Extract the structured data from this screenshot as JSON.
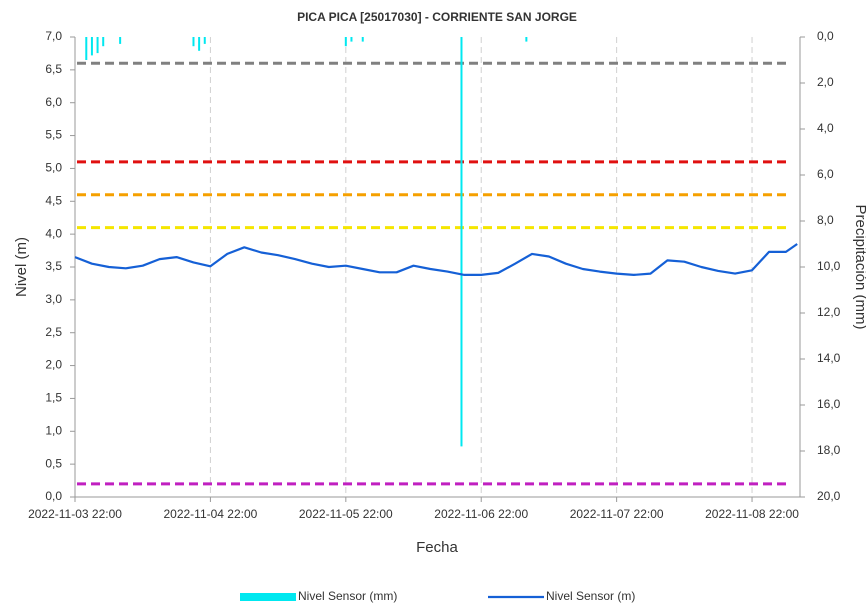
{
  "chart_data": {
    "type": "dual_axis_line_bar",
    "title": "PICA PICA [25017030] - CORRIENTE SAN JORGE",
    "xlabel": "Fecha",
    "ylabel": "Nivel (m)",
    "y2label": "Precipitación (mm)",
    "xlim": [
      "2022-11-03 22:00",
      "2022-11-09 06:30"
    ],
    "xticks": [
      "2022-11-03 22:00",
      "2022-11-04 22:00",
      "2022-11-05 22:00",
      "2022-11-06 22:00",
      "2022-11-07 22:00",
      "2022-11-08 22:00"
    ],
    "ylim": [
      0,
      7
    ],
    "yticks": [
      {
        "value": 0,
        "label": "0,0"
      },
      {
        "value": 0.5,
        "label": "0,5"
      },
      {
        "value": 1,
        "label": "1,0"
      },
      {
        "value": 1.5,
        "label": "1,5"
      },
      {
        "value": 2,
        "label": "2,0"
      },
      {
        "value": 2.5,
        "label": "2,5"
      },
      {
        "value": 3,
        "label": "3,0"
      },
      {
        "value": 3.5,
        "label": "3,5"
      },
      {
        "value": 4,
        "label": "4,0"
      },
      {
        "value": 4.5,
        "label": "4,5"
      },
      {
        "value": 5,
        "label": "5,0"
      },
      {
        "value": 5.5,
        "label": "5,5"
      },
      {
        "value": 6,
        "label": "6,0"
      },
      {
        "value": 6.5,
        "label": "6,5"
      },
      {
        "value": 7,
        "label": "7,0"
      }
    ],
    "y2lim": [
      0,
      20
    ],
    "y2_inverted": true,
    "y2ticks": [
      {
        "value": 0,
        "label": "0,0"
      },
      {
        "value": 2,
        "label": "2,0"
      },
      {
        "value": 4,
        "label": "4,0"
      },
      {
        "value": 6,
        "label": "6,0"
      },
      {
        "value": 8,
        "label": "8,0"
      },
      {
        "value": 10,
        "label": "10,0"
      },
      {
        "value": 12,
        "label": "12,0"
      },
      {
        "value": 14,
        "label": "14,0"
      },
      {
        "value": 16,
        "label": "16,0"
      },
      {
        "value": 18,
        "label": "18,0"
      },
      {
        "value": 20,
        "label": "20,0"
      }
    ],
    "grid": true,
    "reference_lines": [
      {
        "value": 6.6,
        "color": "#808080"
      },
      {
        "value": 5.1,
        "color": "#e01010"
      },
      {
        "value": 4.6,
        "color": "#f5a000"
      },
      {
        "value": 4.1,
        "color": "#f5e600"
      },
      {
        "value": 0.2,
        "color": "#c020c0"
      }
    ],
    "series": [
      {
        "name": "Nivel Sensor (mm)",
        "type": "bar",
        "axis": "y2",
        "color": "#00e8f0",
        "x": [
          "2022-11-04 00:00",
          "2022-11-04 01:00",
          "2022-11-04 02:00",
          "2022-11-04 03:00",
          "2022-11-04 06:00",
          "2022-11-04 19:00",
          "2022-11-04 20:00",
          "2022-11-04 21:00",
          "2022-11-05 22:00",
          "2022-11-05 23:00",
          "2022-11-06 01:00",
          "2022-11-06 18:30",
          "2022-11-07 06:00"
        ],
        "values": [
          1.0,
          0.8,
          0.7,
          0.4,
          0.3,
          0.4,
          0.6,
          0.3,
          0.4,
          0.2,
          0.2,
          17.8,
          0.2
        ]
      },
      {
        "name": "Nivel Sensor (m)",
        "type": "line",
        "color": "#1560d6",
        "x": [
          "2022-11-03 22:00",
          "2022-11-04 01:00",
          "2022-11-04 04:00",
          "2022-11-04 07:00",
          "2022-11-04 10:00",
          "2022-11-04 13:00",
          "2022-11-04 16:00",
          "2022-11-04 19:00",
          "2022-11-04 22:00",
          "2022-11-05 01:00",
          "2022-11-05 04:00",
          "2022-11-05 07:00",
          "2022-11-05 10:00",
          "2022-11-05 13:00",
          "2022-11-05 16:00",
          "2022-11-05 19:00",
          "2022-11-05 22:00",
          "2022-11-06 01:00",
          "2022-11-06 04:00",
          "2022-11-06 07:00",
          "2022-11-06 10:00",
          "2022-11-06 13:00",
          "2022-11-06 16:00",
          "2022-11-06 19:00",
          "2022-11-06 22:00",
          "2022-11-07 01:00",
          "2022-11-07 04:00",
          "2022-11-07 07:00",
          "2022-11-07 10:00",
          "2022-11-07 13:00",
          "2022-11-07 16:00",
          "2022-11-07 19:00",
          "2022-11-07 22:00",
          "2022-11-08 01:00",
          "2022-11-08 04:00",
          "2022-11-08 07:00",
          "2022-11-08 10:00",
          "2022-11-08 13:00",
          "2022-11-08 16:00",
          "2022-11-08 19:00",
          "2022-11-08 22:00",
          "2022-11-09 01:00",
          "2022-11-09 04:00",
          "2022-11-09 06:00"
        ],
        "values": [
          3.65,
          3.55,
          3.5,
          3.48,
          3.52,
          3.62,
          3.65,
          3.57,
          3.51,
          3.7,
          3.8,
          3.72,
          3.68,
          3.62,
          3.55,
          3.5,
          3.52,
          3.47,
          3.42,
          3.42,
          3.52,
          3.47,
          3.43,
          3.38,
          3.38,
          3.41,
          3.55,
          3.7,
          3.66,
          3.55,
          3.47,
          3.43,
          3.4,
          3.38,
          3.4,
          3.6,
          3.58,
          3.5,
          3.44,
          3.4,
          3.45,
          3.73,
          3.73,
          3.85
        ]
      }
    ]
  }
}
